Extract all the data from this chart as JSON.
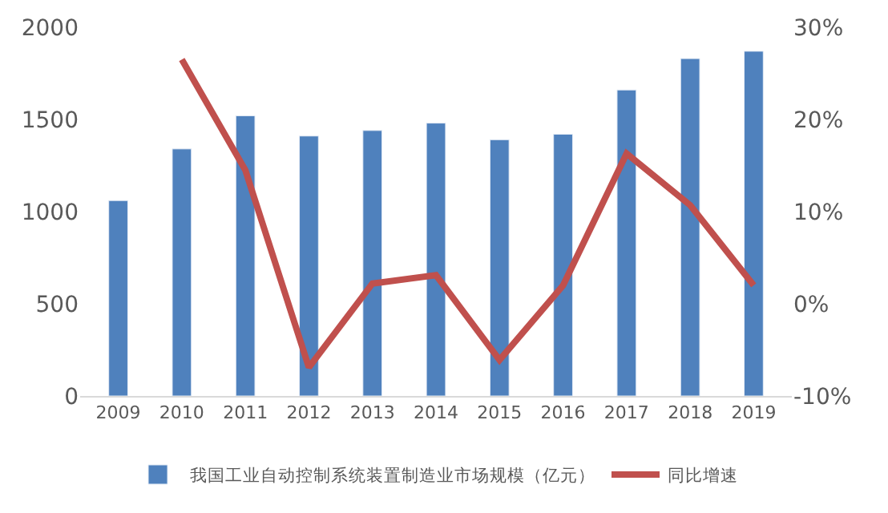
{
  "chart_data": {
    "type": "bar",
    "categories": [
      "2009",
      "2010",
      "2011",
      "2012",
      "2013",
      "2014",
      "2015",
      "2016",
      "2017",
      "2018",
      "2019"
    ],
    "series": [
      {
        "name": "我国工业自动控制系统装置制造业市场规模（亿元）",
        "color": "#4f81bd",
        "values": [
          1060,
          1340,
          1520,
          1410,
          1440,
          1480,
          1390,
          1420,
          1660,
          1830,
          1870
        ]
      },
      {
        "name": "同比增速",
        "type": "line",
        "axis": "y2",
        "color": "#c0504d",
        "values": [
          null,
          26.5,
          14.5,
          -6.9,
          2.2,
          3.1,
          -6.1,
          2.0,
          16.3,
          10.7,
          2.0
        ]
      }
    ],
    "ylim": [
      0,
      2000
    ],
    "yticks": [
      0,
      500,
      1000,
      1500,
      2000
    ],
    "y2lim": [
      -10,
      30
    ],
    "y2ticks": [
      {
        "value": -10,
        "label": "-10%"
      },
      {
        "value": 0,
        "label": "0%"
      },
      {
        "value": 10,
        "label": "10%"
      },
      {
        "value": 20,
        "label": "20%"
      },
      {
        "value": 30,
        "label": "30%"
      }
    ],
    "legend": "bottom",
    "marker": "none"
  }
}
